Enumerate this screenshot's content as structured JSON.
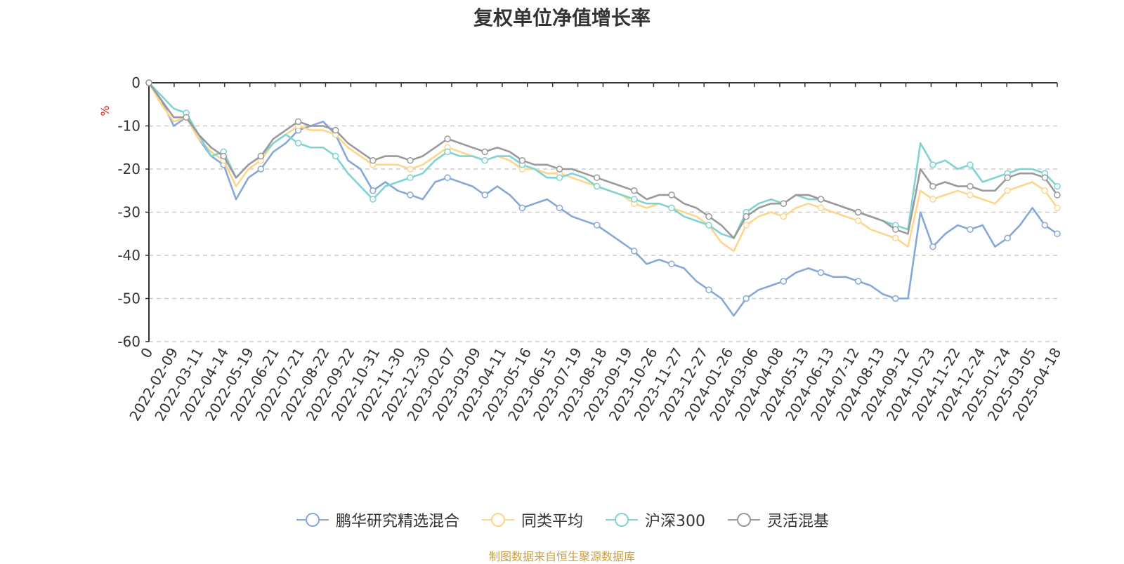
{
  "chart_data": {
    "type": "line",
    "title": "复权单位净值增长率",
    "ylabel": "%",
    "xlabel": "",
    "ylim": [
      -60,
      0
    ],
    "yticks": [
      0,
      -10,
      -20,
      -30,
      -40,
      -50,
      -60
    ],
    "grid": true,
    "legend_position": "bottom",
    "x_tick_labels": [
      "0",
      "2022-02-09",
      "2022-03-11",
      "2022-04-14",
      "2022-05-19",
      "2022-06-21",
      "2022-07-21",
      "2022-08-22",
      "2022-09-22",
      "2022-10-31",
      "2022-11-30",
      "2022-12-30",
      "2023-02-07",
      "2023-03-09",
      "2023-04-11",
      "2023-05-16",
      "2023-06-15",
      "2023-07-19",
      "2023-08-18",
      "2023-09-19",
      "2023-10-26",
      "2023-11-27",
      "2023-12-27",
      "2024-01-26",
      "2024-03-06",
      "2024-04-08",
      "2024-05-13",
      "2024-06-13",
      "2024-07-12",
      "2024-08-13",
      "2024-09-12",
      "2024-10-23",
      "2024-11-22",
      "2024-12-24",
      "2025-01-24",
      "2025-03-05",
      "2025-04-18"
    ],
    "x": [
      "2022-01-04",
      "2022-01-20",
      "2022-02-09",
      "2022-02-24",
      "2022-03-11",
      "2022-03-28",
      "2022-04-14",
      "2022-04-28",
      "2022-05-19",
      "2022-06-02",
      "2022-06-21",
      "2022-07-06",
      "2022-07-21",
      "2022-08-05",
      "2022-08-22",
      "2022-09-06",
      "2022-09-22",
      "2022-10-14",
      "2022-10-31",
      "2022-11-15",
      "2022-11-30",
      "2022-12-15",
      "2022-12-30",
      "2023-01-16",
      "2023-02-07",
      "2023-02-22",
      "2023-03-09",
      "2023-03-24",
      "2023-04-11",
      "2023-04-26",
      "2023-05-16",
      "2023-05-31",
      "2023-06-15",
      "2023-07-04",
      "2023-07-19",
      "2023-08-03",
      "2023-08-18",
      "2023-09-04",
      "2023-09-19",
      "2023-10-11",
      "2023-10-26",
      "2023-11-10",
      "2023-11-27",
      "2023-12-12",
      "2023-12-27",
      "2024-01-11",
      "2024-01-26",
      "2024-02-07",
      "2024-03-06",
      "2024-03-21",
      "2024-04-08",
      "2024-04-23",
      "2024-05-13",
      "2024-05-28",
      "2024-06-13",
      "2024-06-28",
      "2024-07-12",
      "2024-07-29",
      "2024-08-13",
      "2024-08-28",
      "2024-09-12",
      "2024-09-27",
      "2024-10-23",
      "2024-11-07",
      "2024-11-22",
      "2024-12-09",
      "2024-12-24",
      "2025-01-09",
      "2025-01-24",
      "2025-02-14",
      "2025-03-05",
      "2025-03-20",
      "2025-04-07",
      "2025-04-18"
    ],
    "series": [
      {
        "name": "鹏华研究精选混合",
        "color": "#86a8d8",
        "values": [
          0,
          -4,
          -10,
          -8,
          -13,
          -17,
          -19,
          -27,
          -22,
          -20,
          -16,
          -14,
          -11,
          -10,
          -9,
          -12,
          -18,
          -20,
          -25,
          -23,
          -25,
          -26,
          -27,
          -23,
          -22,
          -23,
          -24,
          -26,
          -24,
          -26,
          -29,
          -28,
          -27,
          -29,
          -31,
          -32,
          -33,
          -35,
          -37,
          -39,
          -42,
          -41,
          -42,
          -43,
          -46,
          -48,
          -50,
          -54,
          -50,
          -48,
          -47,
          -46,
          -44,
          -43,
          -44,
          -45,
          -45,
          -46,
          -47,
          -49,
          -50,
          -50,
          -30,
          -38,
          -35,
          -33,
          -34,
          -33,
          -38,
          -36,
          -33,
          -29,
          -33,
          -35
        ]
      },
      {
        "name": "同类平均",
        "color": "#fdd68c",
        "values": [
          0,
          -5,
          -9,
          -8,
          -13,
          -16,
          -18,
          -24,
          -20,
          -18,
          -14,
          -12,
          -10,
          -11,
          -11,
          -12,
          -15,
          -17,
          -19,
          -19,
          -19,
          -20,
          -19,
          -17,
          -15,
          -16,
          -17,
          -18,
          -17,
          -18,
          -20,
          -20,
          -21,
          -21,
          -22,
          -23,
          -24,
          -25,
          -26,
          -28,
          -29,
          -28,
          -29,
          -30,
          -31,
          -33,
          -37,
          -39,
          -33,
          -31,
          -30,
          -31,
          -29,
          -28,
          -29,
          -30,
          -31,
          -32,
          -34,
          -35,
          -36,
          -38,
          -25,
          -27,
          -26,
          -25,
          -26,
          -27,
          -28,
          -25,
          -24,
          -23,
          -25,
          -29
        ]
      },
      {
        "name": "沪深300",
        "color": "#7fd3d3",
        "values": [
          0,
          -3,
          -6,
          -7,
          -12,
          -17,
          -16,
          -22,
          -19,
          -17,
          -14,
          -12,
          -14,
          -15,
          -15,
          -17,
          -21,
          -24,
          -27,
          -24,
          -23,
          -22,
          -21,
          -18,
          -16,
          -17,
          -17,
          -18,
          -17,
          -17,
          -19,
          -20,
          -22,
          -22,
          -21,
          -22,
          -24,
          -25,
          -26,
          -27,
          -28,
          -28,
          -29,
          -31,
          -32,
          -33,
          -35,
          -36,
          -30,
          -28,
          -27,
          -28,
          -26,
          -27,
          -27,
          -28,
          -29,
          -30,
          -31,
          -32,
          -33,
          -34,
          -14,
          -19,
          -18,
          -20,
          -19,
          -23,
          -22,
          -21,
          -20,
          -20,
          -21,
          -24
        ]
      },
      {
        "name": "灵活混基",
        "color": "#9a9a9a",
        "values": [
          0,
          -4,
          -8,
          -8,
          -12,
          -15,
          -17,
          -22,
          -19,
          -17,
          -13,
          -11,
          -9,
          -10,
          -10,
          -11,
          -14,
          -16,
          -18,
          -17,
          -17,
          -18,
          -17,
          -15,
          -13,
          -14,
          -15,
          -16,
          -15,
          -16,
          -18,
          -19,
          -19,
          -20,
          -20,
          -21,
          -22,
          -23,
          -24,
          -25,
          -27,
          -26,
          -26,
          -28,
          -29,
          -31,
          -33,
          -36,
          -31,
          -29,
          -28,
          -28,
          -26,
          -26,
          -27,
          -28,
          -29,
          -30,
          -31,
          -32,
          -34,
          -35,
          -20,
          -24,
          -23,
          -24,
          -24,
          -25,
          -25,
          -22,
          -21,
          -21,
          -22,
          -26
        ]
      }
    ]
  },
  "source_text": "制图数据来自恒生聚源数据库"
}
